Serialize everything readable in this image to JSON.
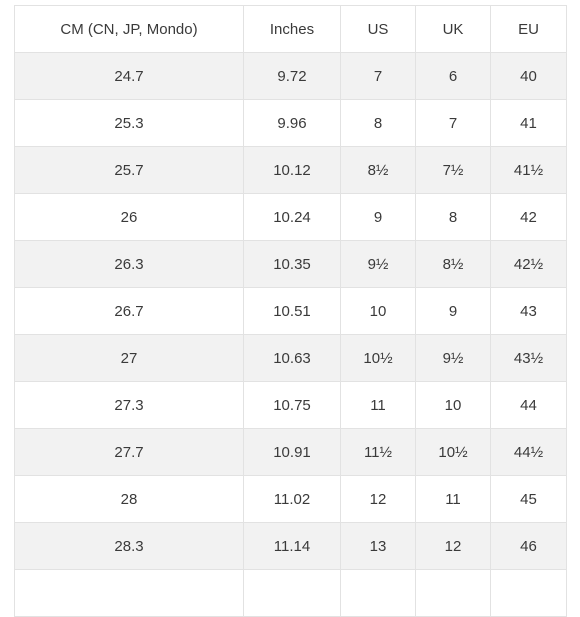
{
  "size_table": {
    "headers": [
      "CM (CN, JP, Mondo)",
      "Inches",
      "US",
      "UK",
      "EU"
    ],
    "rows": [
      [
        "24.7",
        "9.72",
        "7",
        "6",
        "40"
      ],
      [
        "25.3",
        "9.96",
        "8",
        "7",
        "41"
      ],
      [
        "25.7",
        "10.12",
        "8½",
        "7½",
        "41½"
      ],
      [
        "26",
        "10.24",
        "9",
        "8",
        "42"
      ],
      [
        "26.3",
        "10.35",
        "9½",
        "8½",
        "42½"
      ],
      [
        "26.7",
        "10.51",
        "10",
        "9",
        "43"
      ],
      [
        "27",
        "10.63",
        "10½",
        "9½",
        "43½"
      ],
      [
        "27.3",
        "10.75",
        "11",
        "10",
        "44"
      ],
      [
        "27.7",
        "10.91",
        "11½",
        "10½",
        "44½"
      ],
      [
        "28",
        "11.02",
        "12",
        "11",
        "45"
      ],
      [
        "28.3",
        "11.14",
        "13",
        "12",
        "46"
      ],
      [
        "",
        "",
        "",
        "",
        ""
      ]
    ]
  }
}
